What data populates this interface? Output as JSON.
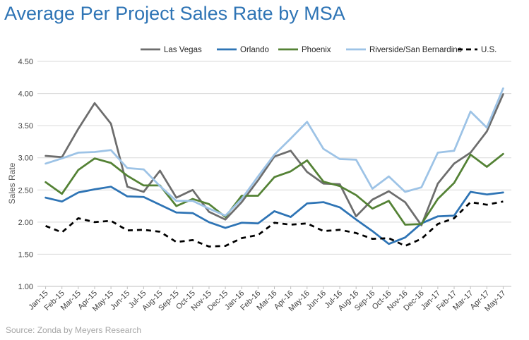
{
  "chart_data": {
    "type": "line",
    "title": "Average Per Project Sales Rate by MSA",
    "ylabel": "Sales Rate",
    "xlabel": "",
    "ylim": [
      1.0,
      4.5
    ],
    "yticks": [
      "1.00",
      "1.50",
      "2.00",
      "2.50",
      "3.00",
      "3.50",
      "4.00",
      "4.50"
    ],
    "grid": "horizontal",
    "legend_position": "top",
    "categories": [
      "Jan-15",
      "Feb-15",
      "Mar-15",
      "Apr-15",
      "May-15",
      "Jun-15",
      "Jul-15",
      "Aug-15",
      "Sep-15",
      "Oct-15",
      "Nov-15",
      "Dec-15",
      "Jan-16",
      "Feb-16",
      "Mar-16",
      "Apr-16",
      "May-16",
      "Jun-16",
      "Jul-16",
      "Aug-16",
      "Sep-16",
      "Oct-16",
      "Nov-16",
      "Dec-16",
      "Jan-17",
      "Feb-17",
      "Mar-17",
      "Apr-17",
      "May-17"
    ],
    "series": [
      {
        "name": "Las Vegas",
        "color": "#6d6d6d",
        "dash": "solid",
        "values": [
          3.03,
          3.01,
          3.45,
          3.85,
          3.53,
          2.55,
          2.47,
          2.8,
          2.38,
          2.5,
          2.16,
          2.04,
          2.31,
          2.65,
          3.02,
          3.11,
          2.78,
          2.6,
          2.59,
          2.09,
          2.35,
          2.48,
          2.31,
          1.95,
          2.6,
          2.91,
          3.08,
          3.41,
          3.99
        ]
      },
      {
        "name": "Orlando",
        "color": "#2e74b5",
        "dash": "solid",
        "values": [
          2.38,
          2.32,
          2.46,
          2.51,
          2.55,
          2.4,
          2.39,
          2.27,
          2.15,
          2.14,
          2.0,
          1.91,
          1.99,
          1.98,
          2.17,
          2.08,
          2.29,
          2.31,
          2.23,
          2.04,
          1.86,
          1.66,
          1.76,
          1.98,
          2.09,
          2.1,
          2.47,
          2.43,
          2.46
        ]
      },
      {
        "name": "Phoenix",
        "color": "#548235",
        "dash": "solid",
        "values": [
          2.62,
          2.44,
          2.81,
          2.99,
          2.92,
          2.72,
          2.57,
          2.57,
          2.25,
          2.36,
          2.28,
          2.08,
          2.41,
          2.41,
          2.7,
          2.79,
          2.96,
          2.63,
          2.56,
          2.42,
          2.21,
          2.33,
          1.96,
          1.97,
          2.36,
          2.61,
          3.05,
          2.86,
          3.06
        ]
      },
      {
        "name": "Riverside/San Bernardino",
        "color": "#9dc3e6",
        "dash": "solid",
        "values": [
          2.91,
          2.99,
          3.08,
          3.09,
          3.12,
          2.84,
          2.82,
          2.56,
          2.33,
          2.33,
          2.21,
          2.1,
          2.36,
          2.71,
          3.05,
          3.3,
          3.56,
          3.14,
          2.98,
          2.97,
          2.52,
          2.71,
          2.47,
          2.54,
          3.08,
          3.11,
          3.72,
          3.47,
          4.08
        ]
      },
      {
        "name": "U.S.",
        "color": "#000000",
        "dash": "dashed",
        "values": [
          1.94,
          1.84,
          2.06,
          2.0,
          2.02,
          1.87,
          1.88,
          1.85,
          1.69,
          1.72,
          1.62,
          1.63,
          1.75,
          1.8,
          1.99,
          1.96,
          1.98,
          1.86,
          1.88,
          1.83,
          1.74,
          1.75,
          1.63,
          1.74,
          1.97,
          2.06,
          2.31,
          2.27,
          2.32
        ]
      }
    ]
  },
  "source": "Source: Zonda by Meyers Research"
}
